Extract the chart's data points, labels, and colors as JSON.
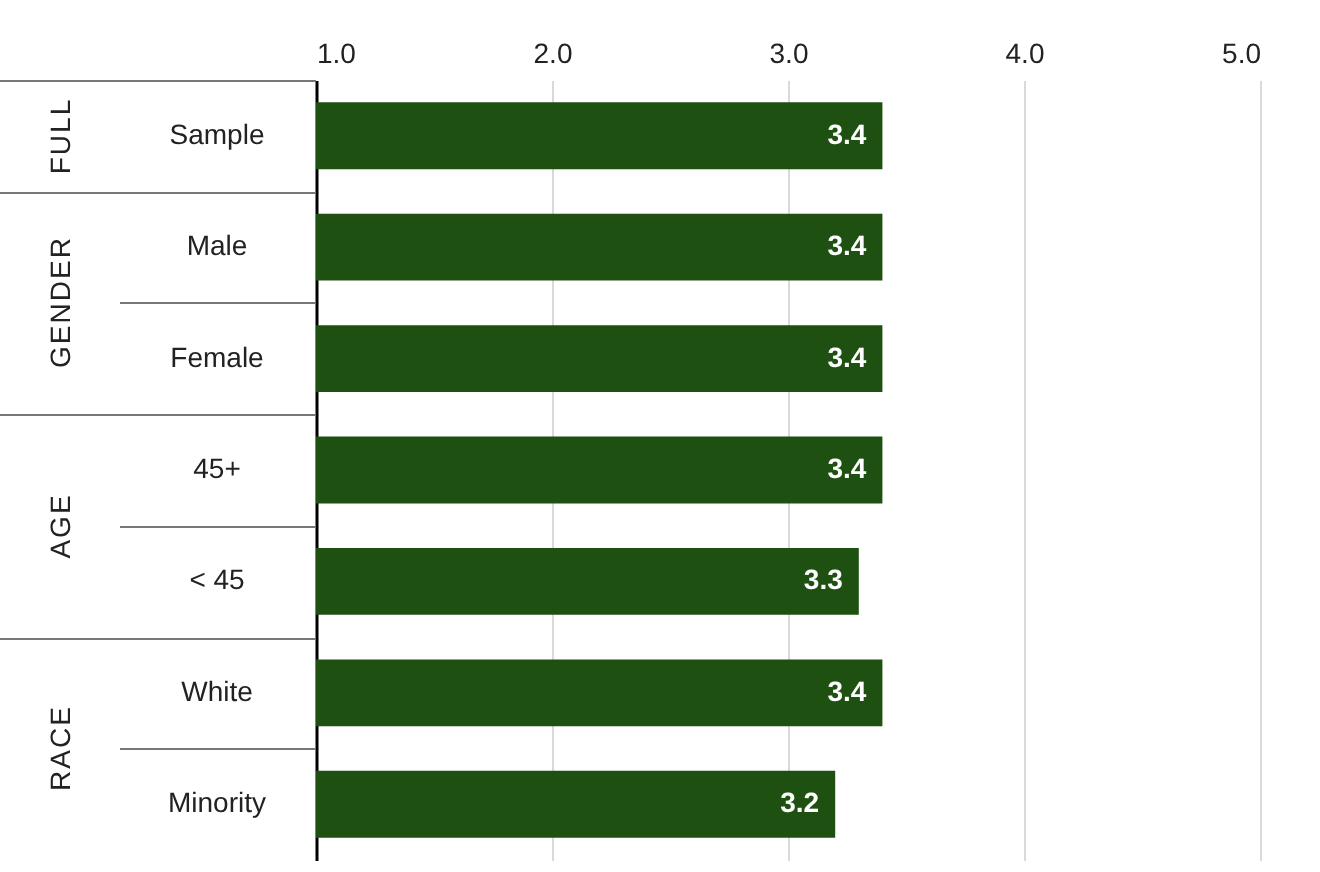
{
  "chart_data": {
    "type": "bar",
    "orientation": "horizontal",
    "categories": [
      "Sample",
      "Male",
      "Female",
      "45+",
      "< 45",
      "White",
      "Minority"
    ],
    "values": [
      3.4,
      3.4,
      3.4,
      3.4,
      3.3,
      3.4,
      3.2
    ],
    "color": "#1e5011",
    "xlim": [
      1,
      5
    ],
    "xticks": [
      {
        "value": 1,
        "label": "1.0"
      },
      {
        "value": 2,
        "label": "2.0"
      },
      {
        "value": 3,
        "label": "3.0"
      },
      {
        "value": 4,
        "label": "4.0"
      },
      {
        "value": 5,
        "label": "5.0"
      }
    ],
    "grid": "x",
    "data_labels": true,
    "annotations": [
      "FULL",
      "GENDER",
      "AGE",
      "RACE"
    ]
  }
}
